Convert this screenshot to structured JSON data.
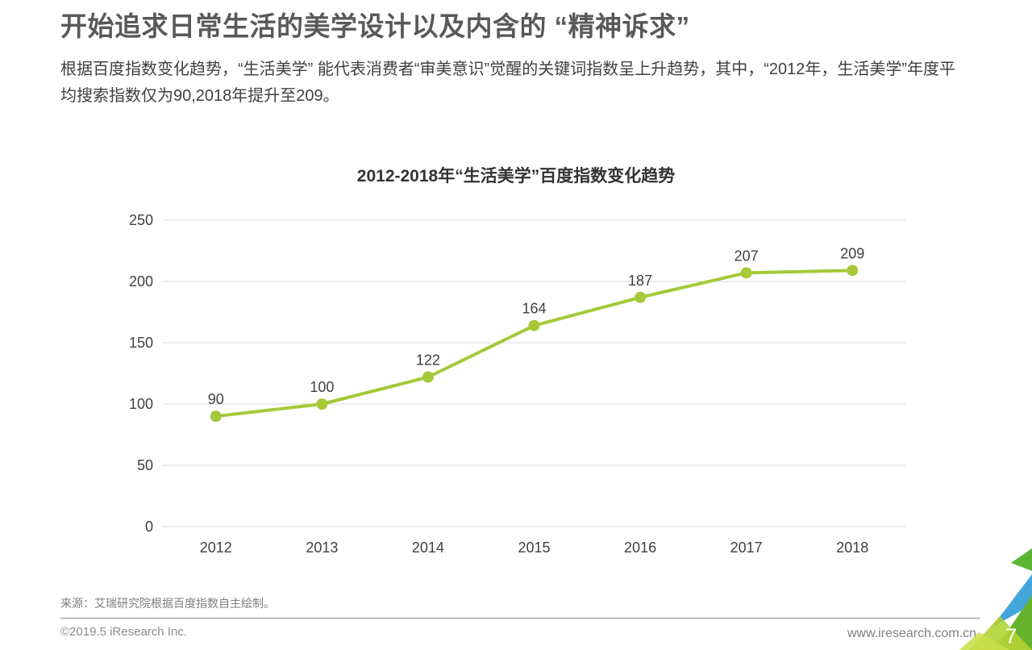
{
  "header": {
    "title": "开始追求日常生活的美学设计以及内含的 “精神诉求”",
    "paragraph": "根据百度指数变化趋势，“生活美学” 能代表消费者“审美意识”觉醒的关键词指数呈上升趋势，其中，“2012年，生活美学”年度平均搜索指数仅为90,2018年提升至209。"
  },
  "chart_data": {
    "type": "line",
    "title": "2012-2018年“生活美学”百度指数变化趋势",
    "categories": [
      "2012",
      "2013",
      "2014",
      "2015",
      "2016",
      "2017",
      "2018"
    ],
    "values": [
      90,
      100,
      122,
      164,
      187,
      207,
      209
    ],
    "xlabel": "",
    "ylabel": "",
    "y_ticks": [
      0,
      50,
      100,
      150,
      200,
      250
    ],
    "ylim": [
      0,
      250
    ],
    "grid": true,
    "legend_position": "none",
    "line_color": "#a5c938",
    "marker_color": "#a5c938",
    "grid_color": "#d9d9d9",
    "label_color": "#404040"
  },
  "source_note": "来源：艾瑞研究院根据百度指数自主绘制。",
  "footer": {
    "copyright": "©2019.5 iResearch Inc.",
    "website": "www.iresearch.com.cn",
    "page_number": "7",
    "deco_colors": {
      "green_tip": "#5cb531",
      "blue": "#44a7dc",
      "green": "#67b32e",
      "lime": "#b2d235",
      "lime_light": "#c9df49"
    }
  }
}
